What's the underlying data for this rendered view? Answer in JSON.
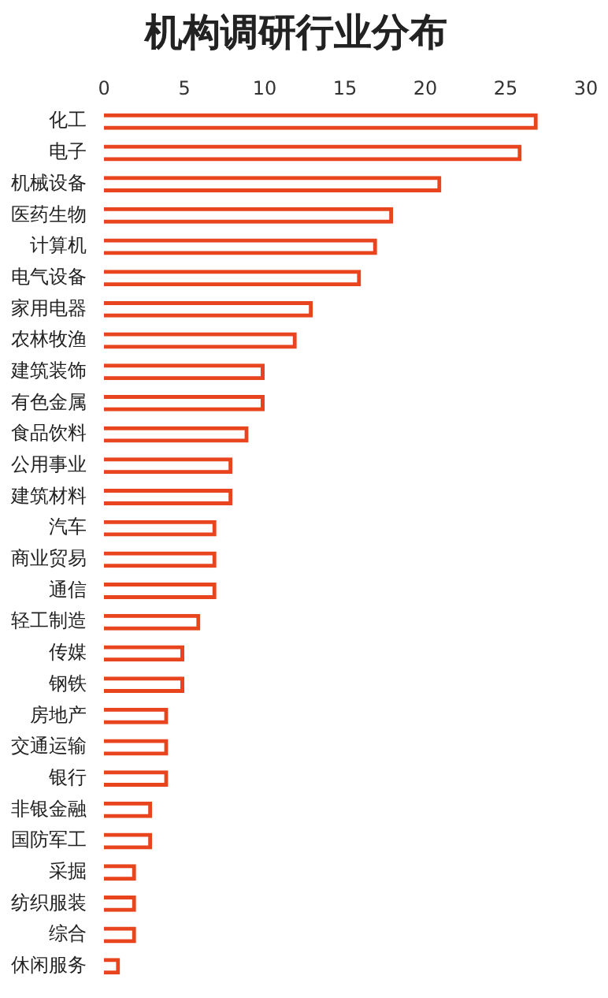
{
  "chart_data": {
    "type": "bar",
    "orientation": "horizontal",
    "title": "机构调研行业分布",
    "categories": [
      "化工",
      "电子",
      "机械设备",
      "医药生物",
      "计算机",
      "电气设备",
      "家用电器",
      "农林牧渔",
      "建筑装饰",
      "有色金属",
      "食品饮料",
      "公用事业",
      "建筑材料",
      "汽车",
      "商业贸易",
      "通信",
      "轻工制造",
      "传媒",
      "钢铁",
      "房地产",
      "交通运输",
      "银行",
      "非银金融",
      "国防军工",
      "采掘",
      "纺织服装",
      "综合",
      "休闲服务"
    ],
    "values": [
      27,
      26,
      21,
      18,
      17,
      16,
      13,
      12,
      10,
      10,
      9,
      8,
      8,
      7,
      7,
      7,
      6,
      5,
      5,
      4,
      4,
      4,
      3,
      3,
      2,
      2,
      2,
      1
    ],
    "color": "#e8441e",
    "xlim": [
      0,
      30
    ],
    "xticks": [
      0,
      5,
      10,
      15,
      20,
      25,
      30
    ],
    "grid": false,
    "legend": false
  }
}
